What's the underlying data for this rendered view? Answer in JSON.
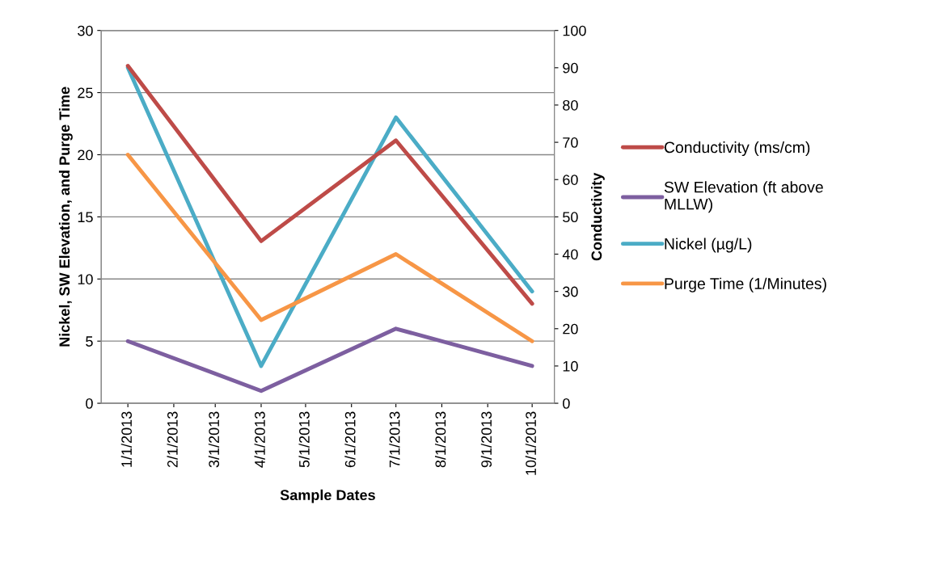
{
  "chart_data": {
    "type": "line",
    "xlabel": "Sample Dates",
    "ylabel": "Nickel, SW Elevation, and Purge Time",
    "y2label": "Conductivity",
    "x": [
      "2013-01-01",
      "2013-04-01",
      "2013-07-01",
      "2013-10-01"
    ],
    "series": [
      {
        "name": "Conductivity (ms/cm)",
        "color": "#be4b48",
        "axis": "y2",
        "values": [
          90.5,
          43.5,
          70.5,
          26.7
        ]
      },
      {
        "name": "SW Elevation (ft above\nMLLW)",
        "color": "#7d5fa0",
        "values": [
          5,
          1,
          6,
          3
        ]
      },
      {
        "name": "Nickel (µg/L)",
        "color": "#4bacc6",
        "values": [
          27,
          3,
          23,
          9
        ]
      },
      {
        "name": "Purge Time (1/Minutes)",
        "color": "#f79646",
        "values": [
          20,
          6.7,
          12,
          5
        ]
      }
    ],
    "xlim": [
      "2012-12-14",
      "2013-10-16"
    ],
    "xticks": [
      {
        "value": "2013-01-01",
        "label": "1/1/2013"
      },
      {
        "value": "2013-02-01",
        "label": "2/1/2013"
      },
      {
        "value": "2013-03-01",
        "label": "3/1/2013"
      },
      {
        "value": "2013-04-01",
        "label": "4/1/2013"
      },
      {
        "value": "2013-05-01",
        "label": "5/1/2013"
      },
      {
        "value": "2013-06-01",
        "label": "6/1/2013"
      },
      {
        "value": "2013-07-01",
        "label": "7/1/2013"
      },
      {
        "value": "2013-08-01",
        "label": "8/1/2013"
      },
      {
        "value": "2013-09-01",
        "label": "9/1/2013"
      },
      {
        "value": "2013-10-01",
        "label": "10/1/2013"
      }
    ],
    "ylim": [
      0,
      30
    ],
    "yticks": [
      0,
      5,
      10,
      15,
      20,
      25,
      30
    ],
    "y2lim": [
      0,
      100
    ],
    "y2ticks": [
      0,
      10,
      20,
      30,
      40,
      50,
      60,
      70,
      80,
      90,
      100
    ],
    "grid": "y",
    "legend": "right",
    "marker": "none",
    "line_style": "solid"
  }
}
